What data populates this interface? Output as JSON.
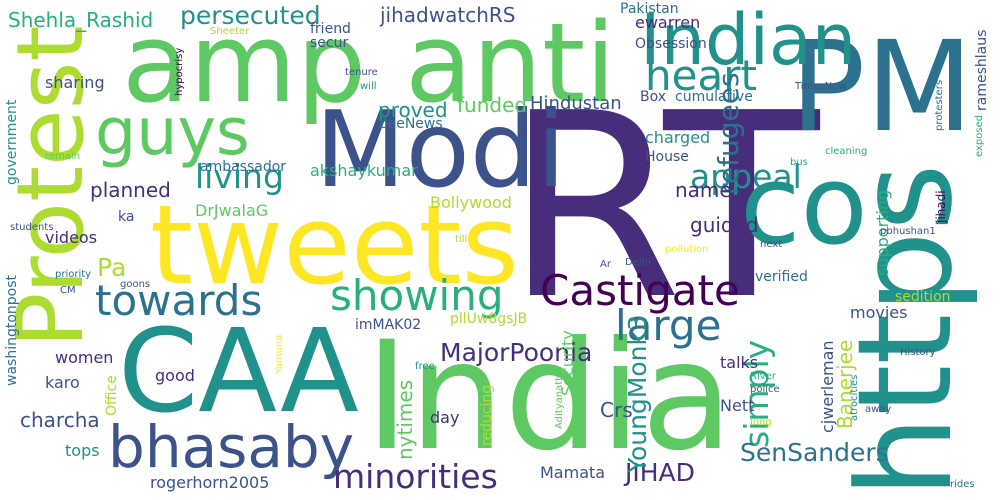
{
  "colors": {
    "background": "#ffffff",
    "dark_purple": "#440154",
    "purple": "#472d7b",
    "indigo": "#3b528b",
    "blue": "#2c728e",
    "teal": "#21918c",
    "green_teal": "#28ae80",
    "green": "#5ec962",
    "lime": "#addc30",
    "yellow": "#fde725"
  },
  "words": [
    {
      "text": "RT",
      "color": "purple"
    },
    {
      "text": "India",
      "color": "green"
    },
    {
      "text": "tweets",
      "color": "yellow"
    },
    {
      "text": "amp",
      "color": "green"
    },
    {
      "text": "anti",
      "color": "green"
    },
    {
      "text": "CAA",
      "color": "teal"
    },
    {
      "text": "PM",
      "color": "blue"
    },
    {
      "text": "https",
      "color": "teal"
    },
    {
      "text": "Modi",
      "color": "indigo"
    },
    {
      "text": "Protest",
      "color": "lime"
    },
    {
      "text": "Indian",
      "color": "teal"
    },
    {
      "text": "co",
      "color": "teal"
    },
    {
      "text": "guys",
      "color": "green"
    },
    {
      "text": "bhasaby",
      "color": "indigo"
    },
    {
      "text": "Castigate",
      "color": "dark_purple"
    },
    {
      "text": "showing",
      "color": "green_teal"
    },
    {
      "text": "towards",
      "color": "blue"
    },
    {
      "text": "heart",
      "color": "teal"
    },
    {
      "text": "large",
      "color": "blue"
    },
    {
      "text": "minorities",
      "color": "purple"
    },
    {
      "text": "appeal",
      "color": "teal"
    },
    {
      "text": "living",
      "color": "teal"
    },
    {
      "text": "simply",
      "color": "green_teal"
    },
    {
      "text": "refugees",
      "color": "blue"
    },
    {
      "text": "MajorPoonia",
      "color": "purple"
    },
    {
      "text": "persecuted",
      "color": "teal"
    },
    {
      "text": "JIHAD",
      "color": "purple"
    },
    {
      "text": "SenSanders",
      "color": "blue"
    },
    {
      "text": "Pa",
      "color": "lime"
    },
    {
      "text": "YoungMonk3",
      "color": "teal"
    },
    {
      "text": "Shehla_Rashid",
      "color": "green_teal"
    },
    {
      "text": "jihadwatchRS",
      "color": "indigo"
    },
    {
      "text": "name",
      "color": "purple"
    },
    {
      "text": "proved",
      "color": "teal"
    },
    {
      "text": "funded",
      "color": "green"
    },
    {
      "text": "Hindustan",
      "color": "indigo"
    },
    {
      "text": "guided",
      "color": "purple"
    },
    {
      "text": "planned",
      "color": "purple"
    },
    {
      "text": "Crs",
      "color": "indigo"
    },
    {
      "text": "nytimes",
      "color": "green"
    },
    {
      "text": "charcha",
      "color": "indigo"
    },
    {
      "text": "Banerjee",
      "color": "lime"
    },
    {
      "text": "Mamata",
      "color": "indigo"
    },
    {
      "text": "rogerhorn2005",
      "color": "indigo"
    },
    {
      "text": "cjwerleman",
      "color": "indigo"
    },
    {
      "text": "Security",
      "color": "green"
    },
    {
      "text": "supporting",
      "color": "green_teal"
    },
    {
      "text": "akshaykumar",
      "color": "green_teal"
    },
    {
      "text": "Bollywood",
      "color": "lime"
    },
    {
      "text": "ambassador",
      "color": "blue"
    },
    {
      "text": "pllUw8gsJB",
      "color": "lime"
    },
    {
      "text": "imMAK02",
      "color": "indigo"
    },
    {
      "text": "ewarren",
      "color": "purple"
    },
    {
      "text": "Pakistan",
      "color": "blue"
    },
    {
      "text": "Obsession",
      "color": "indigo"
    },
    {
      "text": "friend",
      "color": "indigo"
    },
    {
      "text": "secur",
      "color": "indigo"
    },
    {
      "text": "sharing",
      "color": "indigo"
    },
    {
      "text": "Box",
      "color": "indigo"
    },
    {
      "text": "cumulative",
      "color": "blue"
    },
    {
      "text": "charged",
      "color": "teal"
    },
    {
      "text": "House",
      "color": "indigo"
    },
    {
      "text": "ZeeNews",
      "color": "blue"
    },
    {
      "text": "government",
      "color": "teal"
    },
    {
      "text": "DrJwalaG",
      "color": "green"
    },
    {
      "text": "videos",
      "color": "purple"
    },
    {
      "text": "ka",
      "color": "indigo"
    },
    {
      "text": "movies",
      "color": "indigo"
    },
    {
      "text": "women",
      "color": "purple"
    },
    {
      "text": "karo",
      "color": "indigo"
    },
    {
      "text": "good",
      "color": "purple"
    },
    {
      "text": "talks",
      "color": "purple"
    },
    {
      "text": "Nett",
      "color": "indigo"
    },
    {
      "text": "day",
      "color": "purple"
    },
    {
      "text": "tops",
      "color": "teal"
    },
    {
      "text": "washingtonpost",
      "color": "blue"
    },
    {
      "text": "Office",
      "color": "lime"
    },
    {
      "text": "reducing",
      "color": "lime"
    },
    {
      "text": "sedition",
      "color": "lime"
    },
    {
      "text": "verified",
      "color": "blue"
    },
    {
      "text": "rameshlaus",
      "color": "indigo"
    },
    {
      "text": "jihadi",
      "color": "dark_purple"
    },
    {
      "text": "protesters",
      "color": "blue"
    },
    {
      "text": "exposed",
      "color": "green_teal"
    },
    {
      "text": "TimesNow",
      "color": "indigo"
    },
    {
      "text": "tenure",
      "color": "indigo"
    },
    {
      "text": "will",
      "color": "teal"
    },
    {
      "text": "hypocrisy",
      "color": "dark_purple"
    },
    {
      "text": "Sheeter",
      "color": "lime"
    },
    {
      "text": "remain",
      "color": "green"
    },
    {
      "text": "students",
      "color": "indigo"
    },
    {
      "text": "priority",
      "color": "blue"
    },
    {
      "text": "CM",
      "color": "indigo"
    },
    {
      "text": "goons",
      "color": "indigo"
    },
    {
      "text": "Yamuna",
      "color": "yellow"
    },
    {
      "text": "Adityanath",
      "color": "green"
    },
    {
      "text": "free",
      "color": "teal"
    },
    {
      "text": "River",
      "color": "green_teal"
    },
    {
      "text": "police",
      "color": "indigo"
    },
    {
      "text": "atrocities",
      "color": "teal"
    },
    {
      "text": "long",
      "color": "lime"
    },
    {
      "text": "History",
      "color": "indigo"
    },
    {
      "text": "away",
      "color": "indigo"
    },
    {
      "text": "rides",
      "color": "blue"
    },
    {
      "text": "bus",
      "color": "green_teal"
    },
    {
      "text": "cleaning",
      "color": "green_teal"
    },
    {
      "text": "next",
      "color": "indigo"
    },
    {
      "text": "pbhushan1",
      "color": "indigo"
    },
    {
      "text": "pollution",
      "color": "yellow"
    },
    {
      "text": "till",
      "color": "lime"
    },
    {
      "text": "Ar",
      "color": "indigo"
    },
    {
      "text": "Delhi",
      "color": "indigo"
    }
  ]
}
